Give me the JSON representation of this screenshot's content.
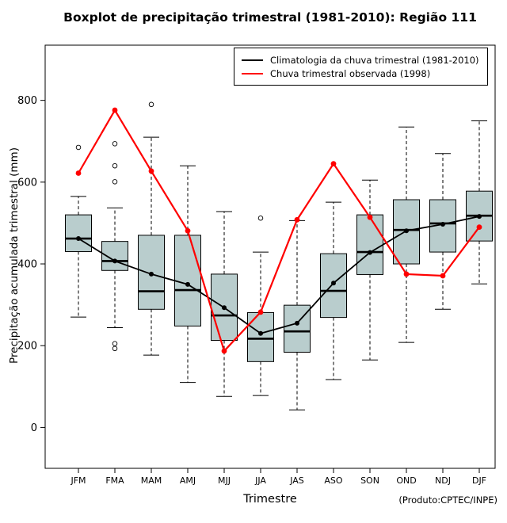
{
  "footer_note": "(Produto:CPTEC/INPE)",
  "chart_data": {
    "type": "boxplot",
    "title": "Boxplot de precipitação trimestral (1981-2010): Região 111",
    "xlabel": "Trimestre",
    "ylabel": "Precipitação acumulada trimestral (mm)",
    "categories": [
      "JFM",
      "FMA",
      "MAM",
      "AMJ",
      "MJJ",
      "JJA",
      "JAS",
      "ASO",
      "SON",
      "OND",
      "NDJ",
      "DJF"
    ],
    "ylim": [
      -100,
      935
    ],
    "yticks": [
      0,
      200,
      400,
      600,
      800
    ],
    "grid": false,
    "legend_position": "top-right",
    "box_fill": "#b9cdcd",
    "box_stroke": "#000000",
    "whisker_style": "dashed",
    "boxes": [
      {
        "low": 270,
        "q1": 430,
        "median": 462,
        "q3": 520,
        "high": 565,
        "outliers": [
          685
        ]
      },
      {
        "low": 244,
        "q1": 384,
        "median": 407,
        "q3": 455,
        "high": 537,
        "outliers": [
          694,
          640,
          601,
          205,
          193
        ]
      },
      {
        "low": 177,
        "q1": 289,
        "median": 333,
        "q3": 470,
        "high": 710,
        "outliers": [
          790
        ]
      },
      {
        "low": 110,
        "q1": 248,
        "median": 336,
        "q3": 470,
        "high": 640,
        "outliers": []
      },
      {
        "low": 76,
        "q1": 213,
        "median": 274,
        "q3": 375,
        "high": 528,
        "outliers": []
      },
      {
        "low": 78,
        "q1": 161,
        "median": 217,
        "q3": 281,
        "high": 429,
        "outliers": [
          512
        ]
      },
      {
        "low": 43,
        "q1": 184,
        "median": 235,
        "q3": 299,
        "high": 506,
        "outliers": []
      },
      {
        "low": 117,
        "q1": 269,
        "median": 334,
        "q3": 425,
        "high": 551,
        "outliers": []
      },
      {
        "low": 165,
        "q1": 374,
        "median": 429,
        "q3": 520,
        "high": 605,
        "outliers": []
      },
      {
        "low": 208,
        "q1": 400,
        "median": 483,
        "q3": 557,
        "high": 735,
        "outliers": []
      },
      {
        "low": 289,
        "q1": 429,
        "median": 499,
        "q3": 557,
        "high": 670,
        "outliers": []
      },
      {
        "low": 351,
        "q1": 456,
        "median": 518,
        "q3": 578,
        "high": 750,
        "outliers": []
      }
    ],
    "series": [
      {
        "name": "Climatologia da chuva trimestral (1981-2010)",
        "color": "#000000",
        "values": [
          462,
          407,
          375,
          350,
          293,
          230,
          255,
          353,
          428,
          481,
          497,
          516
        ]
      },
      {
        "name": "Chuva trimestral observada (1998)",
        "color": "#ff0000",
        "values": [
          622,
          776,
          627,
          481,
          187,
          282,
          508,
          645,
          514,
          375,
          371,
          490
        ]
      }
    ]
  }
}
